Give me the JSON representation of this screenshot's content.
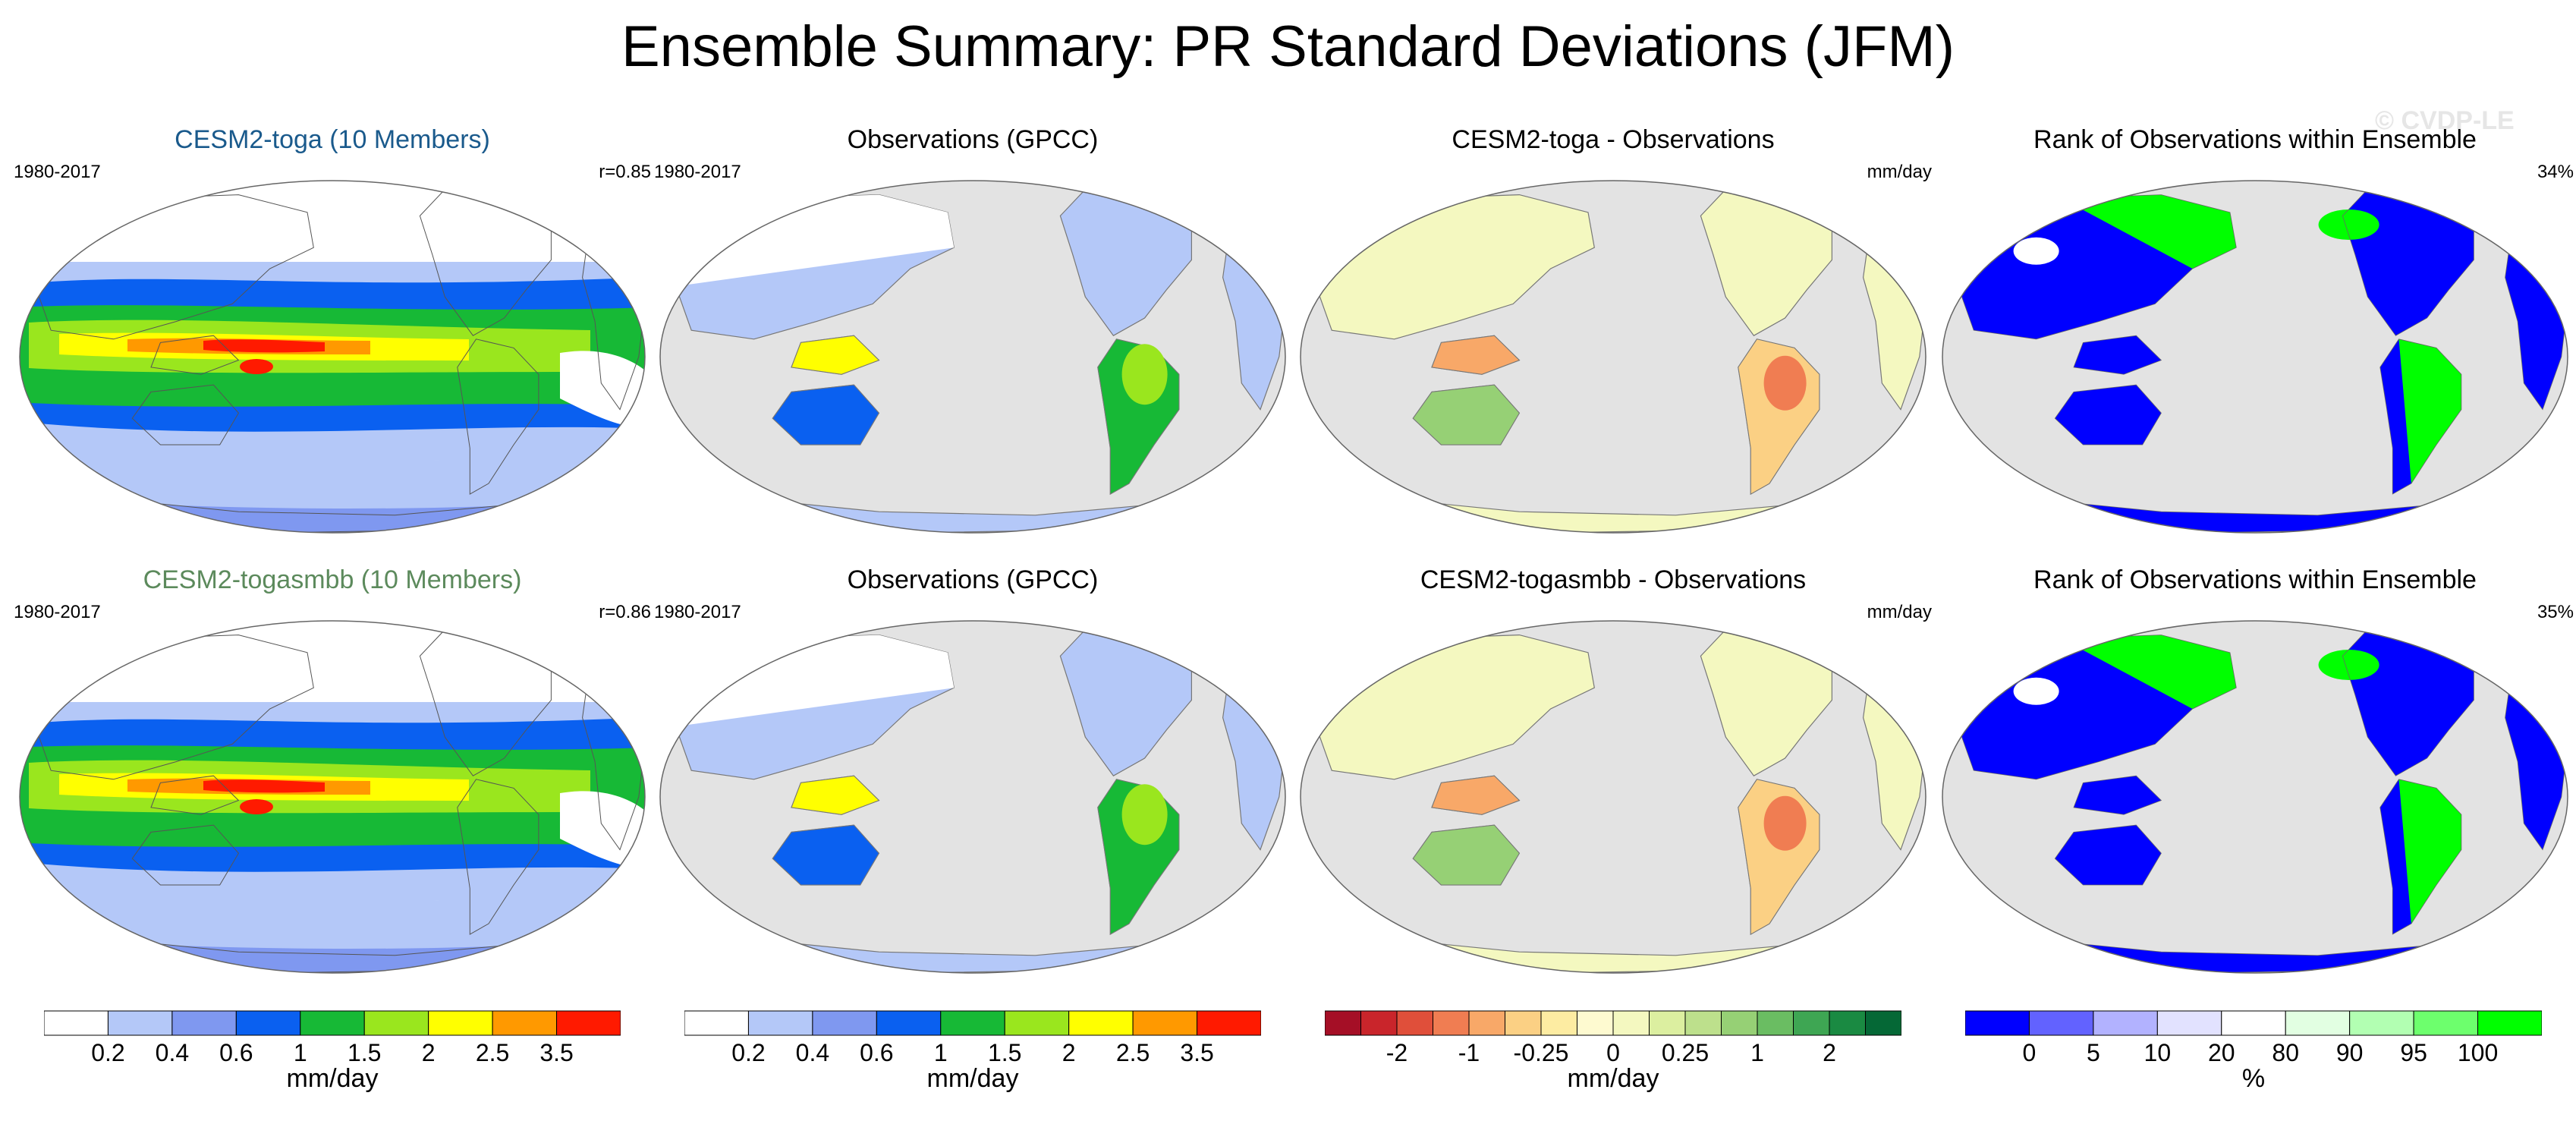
{
  "title": "Ensemble Summary: PR Standard Deviations (JFM)",
  "watermark": "© CVDP-LE",
  "colors": {
    "ocean_gray": "#e3e3e3",
    "model_title": "#1a5a8c",
    "model_title_2": "#5c8a5c"
  },
  "rows": [
    {
      "panels": [
        {
          "title": "CESM2-toga (10 Members)",
          "left": "1980-2017",
          "right": "r=0.85",
          "kind": "model"
        },
        {
          "title": "Observations (GPCC)",
          "left": "1980-2017",
          "right": "",
          "kind": "obs"
        },
        {
          "title": "CESM2-toga - Observations",
          "left": "",
          "right": "mm/day",
          "kind": "diff"
        },
        {
          "title": "Rank of Observations within Ensemble",
          "left": "",
          "right": "34%",
          "kind": "rank"
        }
      ]
    },
    {
      "panels": [
        {
          "title": "CESM2-togasmbb (10 Members)",
          "left": "1980-2017",
          "right": "r=0.86",
          "kind": "model"
        },
        {
          "title": "Observations (GPCC)",
          "left": "1980-2017",
          "right": "",
          "kind": "obs"
        },
        {
          "title": "CESM2-togasmbb - Observations",
          "left": "",
          "right": "mm/day",
          "kind": "diff"
        },
        {
          "title": "Rank of Observations within Ensemble",
          "left": "",
          "right": "35%",
          "kind": "rank"
        }
      ]
    }
  ],
  "chart_data": [
    {
      "type": "colorbar",
      "name": "precip-stddev",
      "units": "mm/day",
      "tick_labels": [
        "0.2",
        "0.4",
        "0.6",
        "1",
        "1.5",
        "2",
        "2.5",
        "3.5"
      ],
      "colors": [
        "#ffffff",
        "#b4c8f8",
        "#7f98f0",
        "#0a60f0",
        "#17b936",
        "#9ae61e",
        "#ffff00",
        "#ff9900",
        "#ff1a00"
      ]
    },
    {
      "type": "colorbar",
      "name": "precip-stddev",
      "units": "mm/day",
      "tick_labels": [
        "0.2",
        "0.4",
        "0.6",
        "1",
        "1.5",
        "2",
        "2.5",
        "3.5"
      ],
      "colors": [
        "#ffffff",
        "#b4c8f8",
        "#7f98f0",
        "#0a60f0",
        "#17b936",
        "#9ae61e",
        "#ffff00",
        "#ff9900",
        "#ff1a00"
      ]
    },
    {
      "type": "colorbar",
      "name": "difference",
      "units": "mm/day",
      "tick_labels": [
        "-2",
        "-1",
        "-0.25",
        "0",
        "0.25",
        "1",
        "2"
      ],
      "tick_positions": [
        2,
        4,
        6,
        8,
        10,
        12,
        14
      ],
      "colors": [
        "#a50f26",
        "#c9252b",
        "#e04f3a",
        "#f07d52",
        "#f8a868",
        "#fbd084",
        "#fdeca2",
        "#fefad0",
        "#f4f8c0",
        "#dcefa0",
        "#bde08c",
        "#96d075",
        "#6abd62",
        "#3ea653",
        "#1a8a42",
        "#056836"
      ]
    },
    {
      "type": "colorbar",
      "name": "rank",
      "units": "%",
      "tick_labels": [
        "0",
        "5",
        "10",
        "20",
        "80",
        "90",
        "95",
        "100"
      ],
      "tick_positions": [
        1,
        2,
        3,
        4,
        5,
        6,
        7,
        8
      ],
      "colors": [
        "#0000ff",
        "#6262ff",
        "#b2b2ff",
        "#e2e2ff",
        "#ffffff",
        "#e2ffe2",
        "#b2ffb2",
        "#6dff6d",
        "#00ff00"
      ]
    }
  ]
}
